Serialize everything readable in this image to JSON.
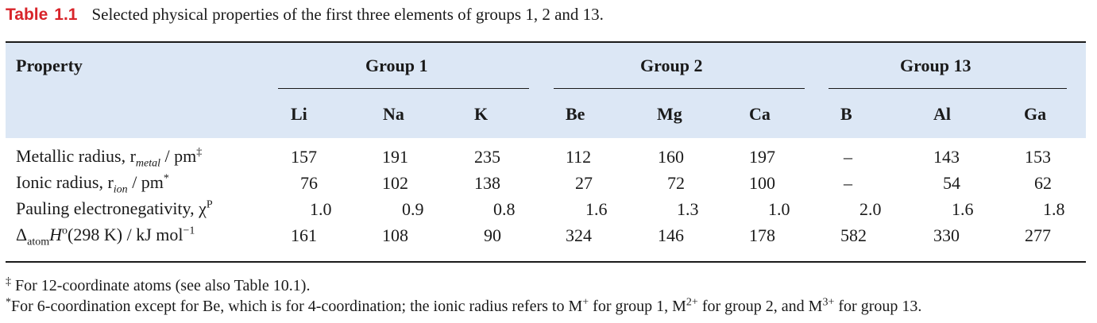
{
  "caption": {
    "label": "Table",
    "number": "1.1",
    "text": "Selected physical properties of the first three elements of groups 1, 2 and 13."
  },
  "header": {
    "property": "Property",
    "groups": [
      "Group 1",
      "Group 2",
      "Group 13"
    ],
    "elements": [
      "Li",
      "Na",
      "K",
      "Be",
      "Mg",
      "Ca",
      "B",
      "Al",
      "Ga"
    ]
  },
  "rows": [
    {
      "label": "Metallic radius, r",
      "label_sub": "metal",
      "label_tail": " / pm",
      "label_mark": "‡",
      "values": [
        "157",
        "191",
        "235",
        "112",
        "160",
        "197",
        "–",
        "143",
        "153"
      ]
    },
    {
      "label": "Ionic radius, r",
      "label_sub": "ion",
      "label_tail": " / pm",
      "label_mark": "*",
      "values": [
        "76",
        "102",
        "138",
        "27",
        "72",
        "100",
        "–",
        "54",
        "62"
      ]
    },
    {
      "label": "Pauling electronegativity, χ",
      "label_mark": "P",
      "values": [
        "1.0",
        "0.9",
        "0.8",
        "1.6",
        "1.3",
        "1.0",
        "2.0",
        "1.6",
        "1.8"
      ]
    },
    {
      "label": "Δ",
      "label_sub": "atom",
      "label_h": "H",
      "label_deg": "o",
      "label_tail": "(298 K) / kJ mol",
      "label_sup": "−1",
      "values": [
        "161",
        "108",
        "90",
        "324",
        "146",
        "178",
        "582",
        "330",
        "277"
      ]
    }
  ],
  "footnotes": {
    "fn1_mark": "‡",
    "fn1_text": " For 12-coordinate atoms (see also Table 10.1).",
    "fn2_mark": "*",
    "fn2_a": "For 6-coordination except for Be, which is for 4-coordination; the ionic radius refers to M",
    "fn2_s1": "+",
    "fn2_b": " for group 1, M",
    "fn2_s2": "2+",
    "fn2_c": " for group 2, and M",
    "fn2_s3": "3+",
    "fn2_d": " for group 13."
  }
}
